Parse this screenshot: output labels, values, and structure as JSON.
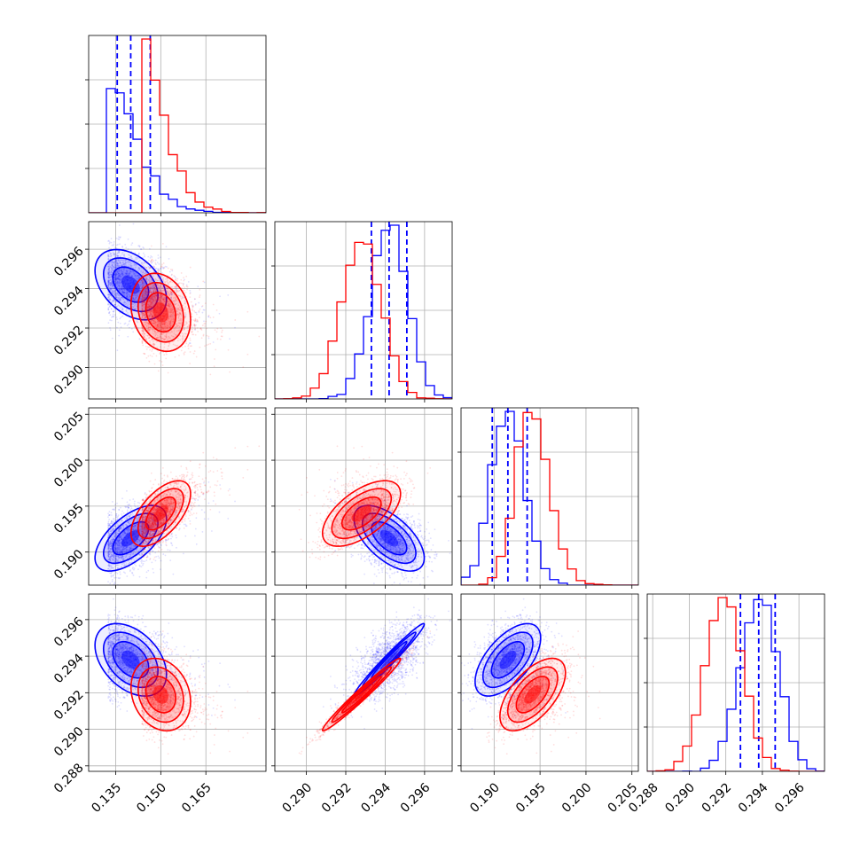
{
  "chart_data": {
    "type": "corner",
    "grid": true,
    "parameters": [
      {
        "range": [
          0.126,
          0.185
        ],
        "ticks": [
          "0.135",
          "0.150",
          "0.165"
        ],
        "tick_values": [
          0.135,
          0.15,
          0.165
        ]
      },
      {
        "range": [
          0.2884,
          0.2974
        ],
        "ticks": [
          "0.290",
          "0.292",
          "0.294",
          "0.296"
        ],
        "tick_values": [
          0.29,
          0.292,
          0.294,
          0.296
        ]
      },
      {
        "range": [
          0.1864,
          0.2057
        ],
        "ticks": [
          "0.190",
          "0.195",
          "0.200",
          "0.205"
        ],
        "tick_values": [
          0.19,
          0.195,
          0.2,
          0.205
        ]
      },
      {
        "range": [
          0.2877,
          0.2974
        ],
        "ticks": [
          "0.288",
          "0.290",
          "0.292",
          "0.294",
          "0.296"
        ],
        "tick_values": [
          0.288,
          0.29,
          0.292,
          0.294,
          0.296
        ]
      }
    ],
    "series": [
      {
        "color": "#0000ff",
        "mean": [
          0.14,
          0.2942,
          0.1915,
          0.2938
        ],
        "sd": [
          0.006,
          0.0009,
          0.0018,
          0.001
        ],
        "quantiles": [
          [
            0.1355,
            0.14,
            0.1465
          ],
          [
            0.2933,
            0.2942,
            0.2951
          ],
          [
            0.1898,
            0.1915,
            0.1936
          ],
          [
            0.2928,
            0.2938,
            0.2947
          ]
        ],
        "corr": [
          [
            1,
            -0.4,
            0.6,
            -0.4
          ],
          [
            -0.4,
            1,
            -0.6,
            0.98
          ],
          [
            0.6,
            -0.6,
            1,
            0.6
          ],
          [
            -0.4,
            0.98,
            0.6,
            1
          ]
        ],
        "skew_right_first": true
      },
      {
        "color": "#ff0000",
        "mean": [
          0.15,
          0.2928,
          0.1942,
          0.2919
        ],
        "sd": [
          0.005,
          0.001,
          0.0018,
          0.001
        ],
        "quantiles": null,
        "corr": [
          [
            1,
            -0.2,
            0.6,
            -0.2
          ],
          [
            -0.2,
            1,
            0.6,
            0.98
          ],
          [
            0.6,
            0.6,
            1,
            0.6
          ],
          [
            -0.2,
            0.98,
            0.6,
            1
          ]
        ],
        "skew_right_first": true
      }
    ]
  }
}
